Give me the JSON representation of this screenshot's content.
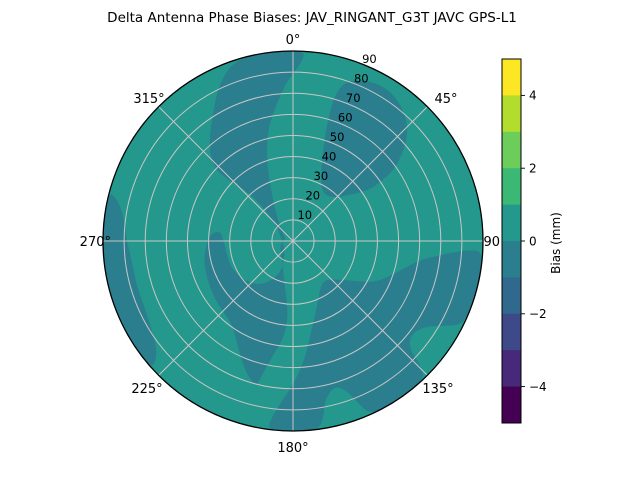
{
  "chart_data": {
    "type": "heatmap",
    "subtype": "polar_contourf",
    "projection": "polar",
    "title": "Delta Antenna Phase Biases: JAV_RINGANT_G3T JAVC GPS-L1",
    "angular_tick_labels": [
      "0°",
      "45°",
      "90",
      "135°",
      "180°",
      "225°",
      "270°",
      "315°"
    ],
    "angular_tick_degrees": [
      0,
      45,
      90,
      135,
      180,
      225,
      270,
      315
    ],
    "radial_tick_labels": [
      "10",
      "20",
      "30",
      "40",
      "50",
      "60",
      "70",
      "80",
      "90"
    ],
    "radial_tick_values": [
      10,
      20,
      30,
      40,
      50,
      60,
      70,
      80,
      90
    ],
    "radial_label_azimuth_deg": 22.5,
    "radial_range": [
      0,
      90
    ],
    "grid_on": true,
    "grid_color": "#c7c7c7",
    "outline_color": "#000000",
    "colorbar": {
      "label": "Bias (mm)",
      "min": -5,
      "max": 5,
      "tick_values": [
        4,
        2,
        0,
        -2,
        -4
      ],
      "tick_labels": [
        "4",
        "2",
        "0",
        "−2",
        "−4"
      ],
      "band_colors_top_to_bottom": [
        "#fde725",
        "#b2dd2c",
        "#6ccd5a",
        "#3cb875",
        "#24988c",
        "#2a7e8e",
        "#31688e",
        "#3e4989",
        "#482878",
        "#440154"
      ]
    },
    "visible_value_bands": {
      "bias_0_to_1_mm_color": "#24988c",
      "bias_minus1_to_0_mm_color": "#2a7e8e"
    },
    "base_band_color": "#24988c",
    "negative_band_color": "#2a7e8e",
    "negative_regions": [
      {
        "name": "north-rim-band-through-center-to-southwest-blob-and-west-arm",
        "points": [
          [
            345,
            90
          ],
          [
            352,
            90
          ],
          [
            358,
            90
          ],
          [
            4,
            90
          ],
          [
            2,
            83
          ],
          [
            358,
            76
          ],
          [
            355,
            69
          ],
          [
            351,
            61
          ],
          [
            347,
            53
          ],
          [
            344,
            45
          ],
          [
            341,
            37
          ],
          [
            338,
            29
          ],
          [
            334,
            21
          ],
          [
            328,
            15
          ],
          [
            321,
            10
          ],
          [
            312,
            7
          ],
          [
            302,
            5
          ],
          [
            290,
            4
          ],
          [
            278,
            4
          ],
          [
            266,
            5
          ],
          [
            254,
            6
          ],
          [
            240,
            7
          ],
          [
            226,
            8
          ],
          [
            212,
            10
          ],
          [
            200,
            14
          ],
          [
            192,
            20
          ],
          [
            186,
            28
          ],
          [
            184,
            36
          ],
          [
            185,
            44
          ],
          [
            188,
            51
          ],
          [
            191,
            58
          ],
          [
            193,
            65
          ],
          [
            194,
            71
          ],
          [
            198,
            68
          ],
          [
            203,
            62
          ],
          [
            208,
            56
          ],
          [
            213,
            51
          ],
          [
            219,
            48
          ],
          [
            226,
            47
          ],
          [
            233,
            46
          ],
          [
            241,
            45
          ],
          [
            250,
            44
          ],
          [
            259,
            43
          ],
          [
            268,
            41
          ],
          [
            275,
            39
          ],
          [
            278,
            35
          ],
          [
            271,
            33
          ],
          [
            261,
            32
          ],
          [
            250,
            32
          ],
          [
            239,
            31
          ],
          [
            228,
            29
          ],
          [
            217,
            26
          ],
          [
            208,
            21
          ],
          [
            201,
            15
          ],
          [
            210,
            8
          ],
          [
            225,
            6
          ],
          [
            240,
            5
          ],
          [
            255,
            5
          ],
          [
            270,
            5
          ],
          [
            285,
            6
          ],
          [
            297,
            7
          ],
          [
            308,
            9
          ],
          [
            315,
            13
          ],
          [
            318,
            19
          ],
          [
            318,
            27
          ],
          [
            316,
            35
          ],
          [
            313,
            43
          ],
          [
            313,
            51
          ],
          [
            317,
            58
          ],
          [
            322,
            64
          ],
          [
            327,
            70
          ],
          [
            331,
            76
          ],
          [
            335,
            82
          ],
          [
            340,
            88
          ]
        ]
      },
      {
        "name": "northeast-kidney-blob",
        "points": [
          [
            19,
            80
          ],
          [
            25,
            84
          ],
          [
            32,
            85
          ],
          [
            39,
            82
          ],
          [
            45,
            77
          ],
          [
            49,
            71
          ],
          [
            52,
            65
          ],
          [
            55,
            58
          ],
          [
            56,
            50
          ],
          [
            56,
            43
          ],
          [
            52,
            36
          ],
          [
            46,
            30
          ],
          [
            39,
            27
          ],
          [
            32,
            27
          ],
          [
            26,
            30
          ],
          [
            22,
            36
          ],
          [
            19,
            43
          ],
          [
            17,
            52
          ],
          [
            16,
            61
          ],
          [
            16,
            70
          ],
          [
            17,
            76
          ]
        ]
      },
      {
        "name": "east-southeast-mass-with-rim-notches",
        "points": [
          [
            93,
            90
          ],
          [
            100,
            90
          ],
          [
            108,
            90
          ],
          [
            116,
            90
          ],
          [
            119,
            83
          ],
          [
            122,
            76
          ],
          [
            126,
            72
          ],
          [
            130,
            72
          ],
          [
            133,
            76
          ],
          [
            134,
            83
          ],
          [
            136,
            90
          ],
          [
            142,
            90
          ],
          [
            149,
            90
          ],
          [
            156,
            90
          ],
          [
            158,
            83
          ],
          [
            160,
            76
          ],
          [
            163,
            72
          ],
          [
            166,
            73
          ],
          [
            169,
            78
          ],
          [
            170,
            84
          ],
          [
            172,
            90
          ],
          [
            178,
            90
          ],
          [
            183,
            90
          ],
          [
            188,
            90
          ],
          [
            186,
            81
          ],
          [
            182,
            72
          ],
          [
            177,
            62
          ],
          [
            173,
            53
          ],
          [
            170,
            46
          ],
          [
            166,
            40
          ],
          [
            161,
            34
          ],
          [
            155,
            29
          ],
          [
            148,
            25
          ],
          [
            141,
            24
          ],
          [
            134,
            26
          ],
          [
            128,
            30
          ],
          [
            122,
            36
          ],
          [
            117,
            43
          ],
          [
            111,
            48
          ],
          [
            105,
            53
          ],
          [
            99,
            60
          ],
          [
            96,
            68
          ],
          [
            94,
            76
          ],
          [
            93,
            83
          ]
        ]
      },
      {
        "name": "west-rim-band",
        "points": [
          [
            228,
            90
          ],
          [
            236,
            90
          ],
          [
            245,
            90
          ],
          [
            254,
            90
          ],
          [
            263,
            90
          ],
          [
            272,
            90
          ],
          [
            280,
            90
          ],
          [
            285,
            90
          ],
          [
            283,
            85
          ],
          [
            278,
            81
          ],
          [
            271,
            79
          ],
          [
            263,
            77
          ],
          [
            254,
            77
          ],
          [
            246,
            77
          ],
          [
            238,
            79
          ],
          [
            232,
            82
          ],
          [
            229,
            86
          ]
        ]
      }
    ]
  }
}
